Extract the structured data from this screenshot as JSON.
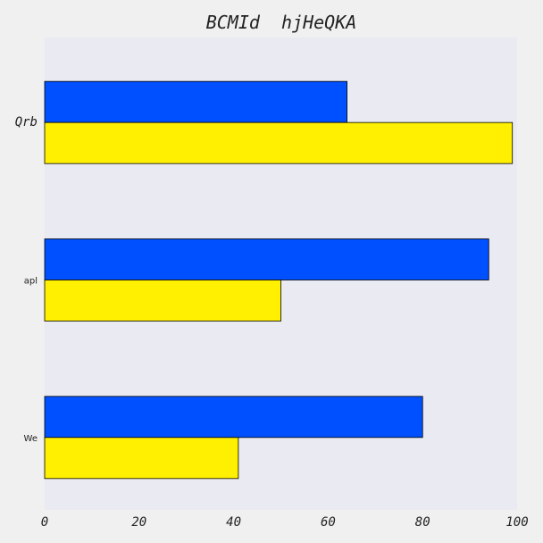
{
  "chart_data": {
    "type": "bar",
    "orientation": "horizontal",
    "title": "BCMId  hjHeQKA",
    "xlabel": "",
    "ylabel": "",
    "categories": [
      "We",
      "apl",
      "Qrb"
    ],
    "series": [
      {
        "color": "#ffef00",
        "values": [
          41,
          50,
          99
        ]
      },
      {
        "color": "#0050ff",
        "values": [
          80,
          94,
          64
        ]
      }
    ],
    "xlim": [
      0,
      100
    ],
    "xticks": [
      "0",
      "20",
      "40",
      "60",
      "80",
      "100"
    ],
    "grid": false,
    "legend": "none",
    "plot_background": "#eaeaf2",
    "figure_background": "#f0f0f0"
  }
}
